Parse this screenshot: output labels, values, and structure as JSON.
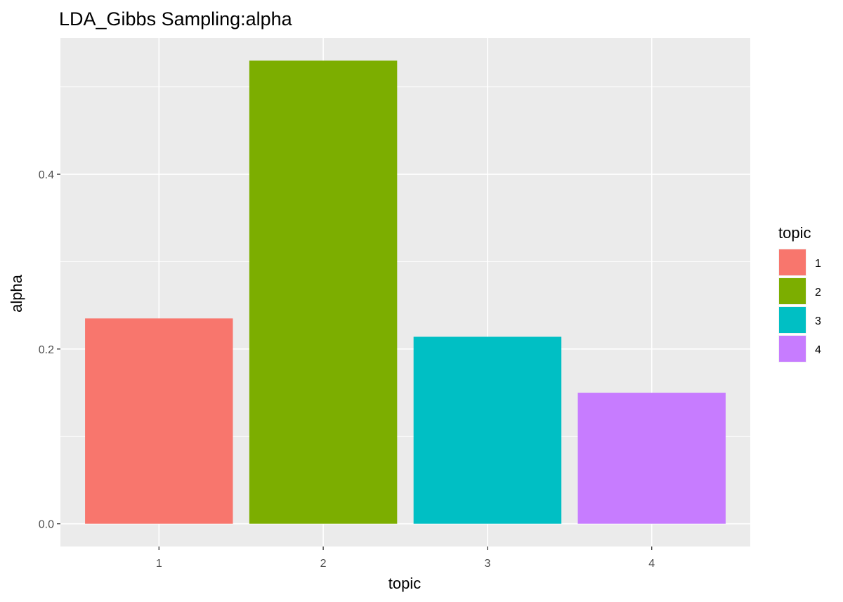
{
  "chart_data": {
    "type": "bar",
    "title": "LDA_Gibbs Sampling:alpha",
    "xlabel": "topic",
    "ylabel": "alpha",
    "categories": [
      "1",
      "2",
      "3",
      "4"
    ],
    "values": [
      0.235,
      0.53,
      0.214,
      0.15
    ],
    "colors": [
      "#F8766D",
      "#7CAE00",
      "#00BFC4",
      "#C77CFF"
    ],
    "ylim": [
      -0.026,
      0.556
    ],
    "yticks": [
      0.0,
      0.2,
      0.4
    ],
    "ytick_labels": [
      "0.0",
      "0.2",
      "0.4"
    ],
    "grid": true,
    "panel_background": "#EBEBEB",
    "legend": {
      "title": "topic",
      "entries": [
        "1",
        "2",
        "3",
        "4"
      ],
      "position": "right"
    }
  }
}
